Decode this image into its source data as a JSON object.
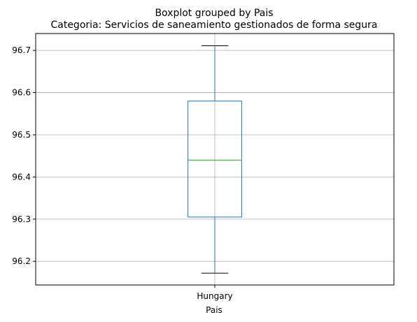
{
  "chart_data": {
    "type": "boxplot",
    "suptitle": "Boxplot grouped by Pais",
    "title": "Categoria: Servicios de saneamiento gestionados de forma segura",
    "xlabel": "Pais",
    "ylabel": "",
    "categories": [
      "Hungary"
    ],
    "boxes": [
      {
        "category": "Hungary",
        "whisker_low": 96.172,
        "q1": 96.305,
        "median": 96.44,
        "q3": 96.58,
        "whisker_high": 96.711
      }
    ],
    "ylim": [
      96.144,
      96.74
    ],
    "yticks": [
      "96.2",
      "96.3",
      "96.4",
      "96.5",
      "96.6",
      "96.7"
    ],
    "grid": true,
    "colors": {
      "box": "#1f77b4",
      "median": "#2ca02c",
      "whisker_cap": "#000000",
      "grid": "#b0b0b0"
    }
  }
}
